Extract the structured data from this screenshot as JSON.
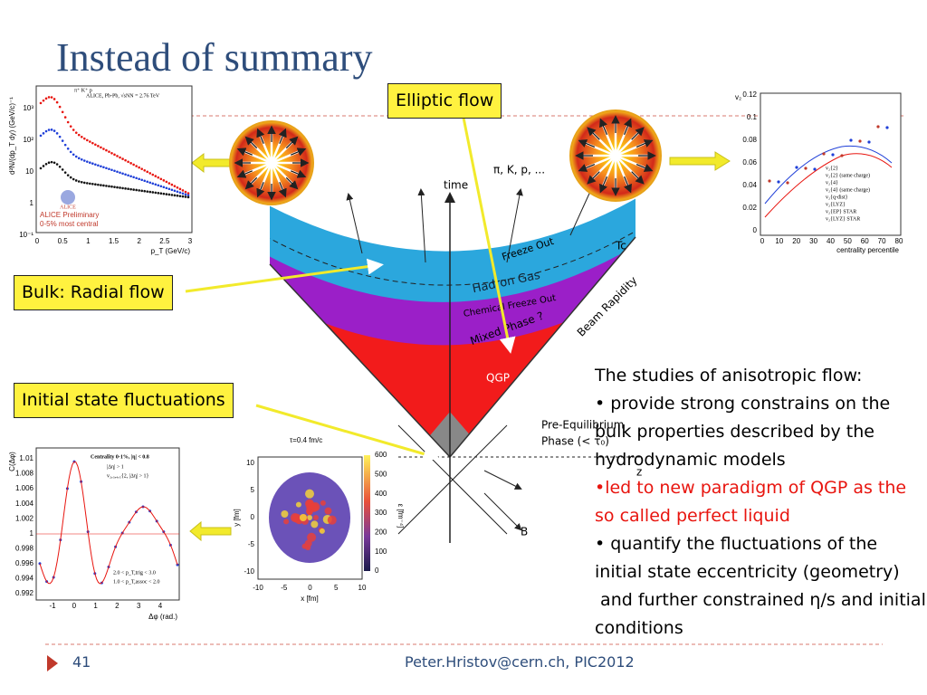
{
  "title": "Instead of summary",
  "callouts": [
    "Elliptic flow",
    "Bulk: Radial flow",
    "Initial state fluctuations"
  ],
  "text_block": {
    "heading": "The studies of anisotropic flow:",
    "bullets": [
      {
        "text": "• provide strong constrains on the bulk properties described by the hydrodynamic models",
        "color": "#000000"
      },
      {
        "text": "•led to new paradigm of QGP as the so called perfect liquid",
        "color": "#e8150f"
      },
      {
        "text": "• quantify the fluctuations of the initial state eccentricity (geometry)",
        "color": "#000000"
      },
      {
        "text": " and further constrained η/s and initial conditions",
        "color": "#000000"
      }
    ]
  },
  "diagram": {
    "labels": [
      "time",
      "π, K, p, ...",
      "Freeze Out",
      "Hadron Gas",
      "Chemical Freeze Out",
      "Mixed Phase ?",
      "QGP",
      "Beam Rapidity",
      "Pre-Equilibrium",
      "Phase (< τ₀)",
      "z",
      "B",
      "Tc"
    ]
  },
  "spectrum_plot": {
    "y_label": "d²N/(dp_T dy) (GeV/c)⁻¹",
    "x_label": "p_T (GeV/c)",
    "legend_species": "π⁺ K⁺ p",
    "legend": "ALICE, Pb-Pb, √sNN = 2.76 TeV",
    "notes": [
      "ALICE Preliminary",
      "0-5% most central"
    ],
    "logo": "ALICE",
    "xticks": [
      "0",
      "0.5",
      "1",
      "1.5",
      "2",
      "2.5",
      "3"
    ],
    "yticks": [
      "10³",
      "10²",
      "10",
      "1",
      "10⁻¹"
    ]
  },
  "v2_plot": {
    "y_label": "v₂",
    "x_label": "centrality percentile",
    "xticks": [
      "0",
      "10",
      "20",
      "30",
      "40",
      "50",
      "60",
      "70",
      "80"
    ],
    "yticks": [
      "0",
      "0.02",
      "0.04",
      "0.06",
      "0.08",
      "0.1",
      "0.12"
    ],
    "legend": [
      "v₂{2}",
      "v₂{2} (same charge)",
      "v₂{4}",
      "v₂{4} (same charge)",
      "v₂{q-dist}",
      "v₂{LYZ}",
      "v₂{EP} STAR",
      "v₂{LYZ} STAR"
    ]
  },
  "correlation_plot": {
    "y_label": "C(Δφ)",
    "x_label": "Δφ (rad.)",
    "title": "Centrality 0-1%, |η| < 0.8",
    "legend": [
      "|Δη| > 1",
      "v₂,₃,₄,₅{2, |Δη| > 1}"
    ],
    "notes": [
      "2.0 < p_T,trig < 3.0",
      "1.0 < p_T,assoc < 2.0"
    ],
    "xticks": [
      "-1",
      "0",
      "1",
      "2",
      "3",
      "4"
    ],
    "yticks": [
      "1.01",
      "1.008",
      "1.006",
      "1.004",
      "1.002",
      "1",
      "0.998",
      "0.996",
      "0.994",
      "0.992"
    ]
  },
  "fluct_map": {
    "title": "τ=0.4 fm/c",
    "x_label": "x [fm]",
    "y_label": "y [fm]",
    "z_label": "ε [fm⁻⁴]",
    "xticks": [
      "-10",
      "-5",
      "0",
      "5",
      "10"
    ],
    "yticks": [
      "10",
      "5",
      "0",
      "-5",
      "-10"
    ],
    "zticks": [
      "600",
      "500",
      "400",
      "300",
      "200",
      "100",
      "0"
    ]
  },
  "footer": {
    "page": "41",
    "credit": "Peter.Hristov@cern.ch, PIC2012"
  }
}
